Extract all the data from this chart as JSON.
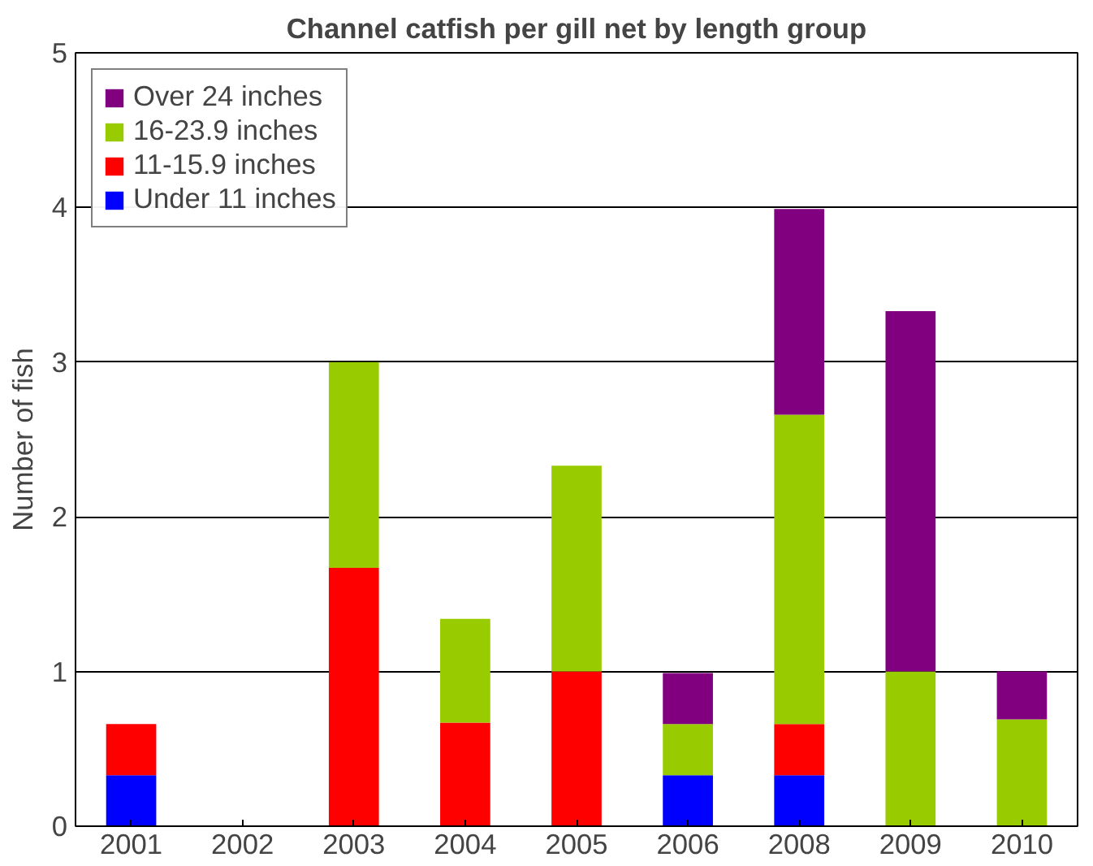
{
  "chart_data": {
    "type": "bar",
    "title": "Channel catfish per gill net by length group",
    "ylabel": "Number of fish",
    "categories": [
      "2001",
      "2002",
      "2003",
      "2004",
      "2005",
      "2006",
      "2008",
      "2009",
      "2010"
    ],
    "stacked": true,
    "ylim": [
      0,
      5
    ],
    "yticks": [
      0,
      1,
      2,
      3,
      4,
      5
    ],
    "grid": "y",
    "legend": "top left",
    "series": [
      {
        "name": "Under 11 inches",
        "color": "#0000ff",
        "values": [
          0.33,
          0,
          0,
          0,
          0,
          0.33,
          0.33,
          0,
          0
        ]
      },
      {
        "name": "11-15.9 inches",
        "color": "#ff0000",
        "values": [
          0.33,
          0,
          1.67,
          0.67,
          1.0,
          0,
          0.33,
          0,
          0
        ]
      },
      {
        "name": "16-23.9 inches",
        "color": "#99cc00",
        "values": [
          0,
          0,
          1.33,
          0.67,
          1.33,
          0.33,
          2.0,
          1.0,
          0.69
        ]
      },
      {
        "name": "Over 24 inches",
        "color": "#800080",
        "values": [
          0,
          0,
          0,
          0,
          0,
          0.33,
          1.33,
          2.33,
          0.31
        ]
      }
    ]
  }
}
